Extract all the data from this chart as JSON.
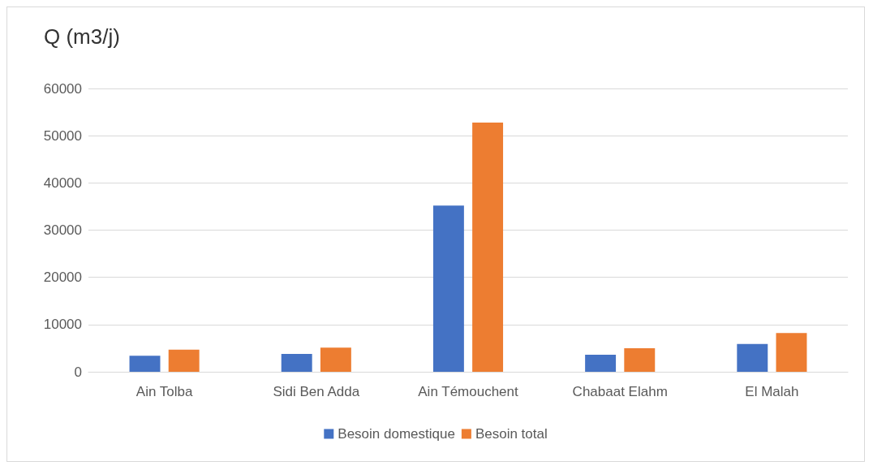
{
  "chart_data": {
    "type": "bar",
    "title": "Q (m3/j)",
    "categories": [
      "Ain Tolba",
      "Sidi Ben Adda",
      "Ain Témouchent",
      "Chabaat Elahm",
      "El Malah"
    ],
    "series": [
      {
        "name": "Besoin domestique",
        "color": "#4472c4",
        "values": [
          3400,
          3800,
          35200,
          3600,
          5900
        ]
      },
      {
        "name": "Besoin total",
        "color": "#ed7d31",
        "values": [
          4700,
          5100,
          52800,
          5000,
          8200
        ]
      }
    ],
    "ylim": [
      0,
      60000
    ],
    "yticks": [
      0,
      10000,
      20000,
      30000,
      40000,
      50000,
      60000
    ],
    "grid": "y",
    "legend": "bottom"
  }
}
